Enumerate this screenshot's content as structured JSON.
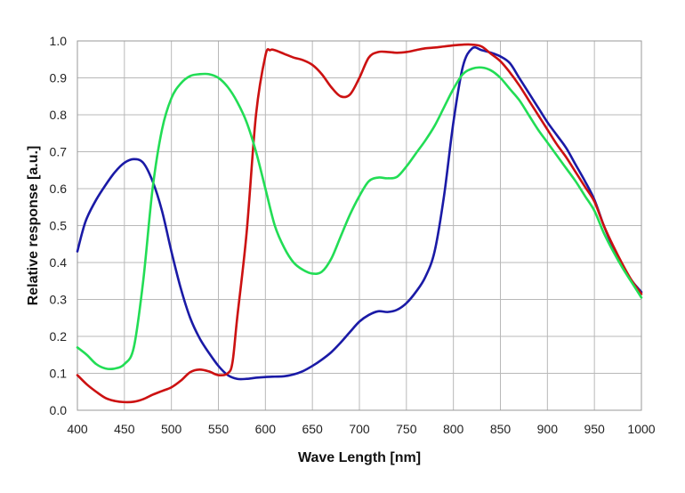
{
  "chart_data": {
    "type": "line",
    "title": "",
    "xlabel": "Wave Length [nm]",
    "ylabel": "Relative response  [a.u.]",
    "xlim": [
      400,
      1000
    ],
    "ylim": [
      0,
      1.0
    ],
    "x_ticks": [
      400,
      450,
      500,
      550,
      600,
      650,
      700,
      750,
      800,
      850,
      900,
      950,
      1000
    ],
    "y_ticks": [
      0.0,
      0.1,
      0.2,
      0.3,
      0.4,
      0.5,
      0.6,
      0.7,
      0.8,
      0.9,
      1.0
    ],
    "x_tick_labels": [
      "400",
      "450",
      "500",
      "550",
      "600",
      "650",
      "700",
      "750",
      "800",
      "850",
      "900",
      "950",
      "1000"
    ],
    "y_tick_labels": [
      "0.0",
      "0.1",
      "0.2",
      "0.3",
      "0.4",
      "0.5",
      "0.6",
      "0.7",
      "0.8",
      "0.9",
      "1.0"
    ],
    "grid": true,
    "series": [
      {
        "name": "blue",
        "color": "#1a1aa6",
        "x": [
          400,
          405,
          410,
          420,
          430,
          440,
          450,
          460,
          470,
          480,
          490,
          500,
          510,
          520,
          530,
          540,
          550,
          560,
          570,
          580,
          590,
          600,
          610,
          620,
          630,
          640,
          650,
          660,
          670,
          680,
          690,
          700,
          710,
          720,
          730,
          740,
          750,
          760,
          770,
          780,
          790,
          800,
          810,
          820,
          830,
          840,
          850,
          860,
          870,
          880,
          890,
          900,
          910,
          920,
          930,
          940,
          950,
          960,
          970,
          980,
          990,
          1000
        ],
        "y": [
          0.43,
          0.48,
          0.52,
          0.57,
          0.61,
          0.645,
          0.67,
          0.68,
          0.67,
          0.62,
          0.54,
          0.43,
          0.33,
          0.25,
          0.195,
          0.155,
          0.12,
          0.095,
          0.085,
          0.085,
          0.088,
          0.09,
          0.091,
          0.092,
          0.097,
          0.106,
          0.12,
          0.137,
          0.157,
          0.183,
          0.212,
          0.24,
          0.258,
          0.268,
          0.266,
          0.272,
          0.29,
          0.32,
          0.36,
          0.43,
          0.58,
          0.78,
          0.93,
          0.98,
          0.975,
          0.968,
          0.958,
          0.94,
          0.9,
          0.86,
          0.82,
          0.78,
          0.745,
          0.71,
          0.665,
          0.62,
          0.57,
          0.5,
          0.44,
          0.39,
          0.35,
          0.32
        ]
      },
      {
        "name": "red",
        "color": "#cc1111",
        "x": [
          400,
          410,
          420,
          430,
          440,
          450,
          460,
          470,
          480,
          490,
          500,
          510,
          520,
          530,
          540,
          550,
          560,
          565,
          570,
          580,
          590,
          600,
          605,
          610,
          620,
          630,
          640,
          650,
          660,
          670,
          680,
          690,
          700,
          710,
          720,
          730,
          740,
          750,
          760,
          770,
          780,
          790,
          800,
          810,
          820,
          830,
          840,
          850,
          860,
          870,
          880,
          890,
          900,
          910,
          920,
          930,
          940,
          950,
          960,
          970,
          980,
          990,
          1000
        ],
        "y": [
          0.095,
          0.07,
          0.05,
          0.033,
          0.025,
          0.022,
          0.023,
          0.03,
          0.042,
          0.052,
          0.062,
          0.08,
          0.103,
          0.11,
          0.105,
          0.095,
          0.1,
          0.13,
          0.25,
          0.48,
          0.8,
          0.96,
          0.975,
          0.975,
          0.965,
          0.955,
          0.948,
          0.935,
          0.91,
          0.875,
          0.85,
          0.855,
          0.9,
          0.955,
          0.97,
          0.97,
          0.968,
          0.97,
          0.975,
          0.98,
          0.982,
          0.985,
          0.988,
          0.99,
          0.99,
          0.985,
          0.965,
          0.945,
          0.915,
          0.88,
          0.84,
          0.8,
          0.76,
          0.72,
          0.685,
          0.645,
          0.605,
          0.565,
          0.5,
          0.445,
          0.395,
          0.35,
          0.315
        ]
      },
      {
        "name": "green",
        "color": "#22dd55",
        "x": [
          400,
          410,
          420,
          430,
          440,
          450,
          460,
          470,
          480,
          490,
          500,
          510,
          520,
          530,
          540,
          550,
          560,
          570,
          580,
          590,
          600,
          610,
          620,
          630,
          640,
          650,
          660,
          670,
          680,
          690,
          700,
          710,
          720,
          730,
          740,
          750,
          760,
          770,
          780,
          790,
          800,
          810,
          820,
          830,
          840,
          850,
          860,
          870,
          880,
          890,
          900,
          910,
          920,
          930,
          940,
          950,
          960,
          970,
          980,
          990,
          1000
        ],
        "y": [
          0.17,
          0.15,
          0.125,
          0.113,
          0.113,
          0.125,
          0.17,
          0.35,
          0.6,
          0.76,
          0.845,
          0.885,
          0.905,
          0.91,
          0.91,
          0.9,
          0.875,
          0.835,
          0.78,
          0.7,
          0.6,
          0.5,
          0.44,
          0.4,
          0.38,
          0.37,
          0.375,
          0.41,
          0.47,
          0.53,
          0.58,
          0.62,
          0.63,
          0.628,
          0.632,
          0.66,
          0.695,
          0.73,
          0.77,
          0.82,
          0.87,
          0.91,
          0.925,
          0.928,
          0.92,
          0.9,
          0.87,
          0.84,
          0.8,
          0.76,
          0.725,
          0.69,
          0.655,
          0.62,
          0.58,
          0.54,
          0.48,
          0.43,
          0.385,
          0.345,
          0.305
        ]
      }
    ]
  }
}
